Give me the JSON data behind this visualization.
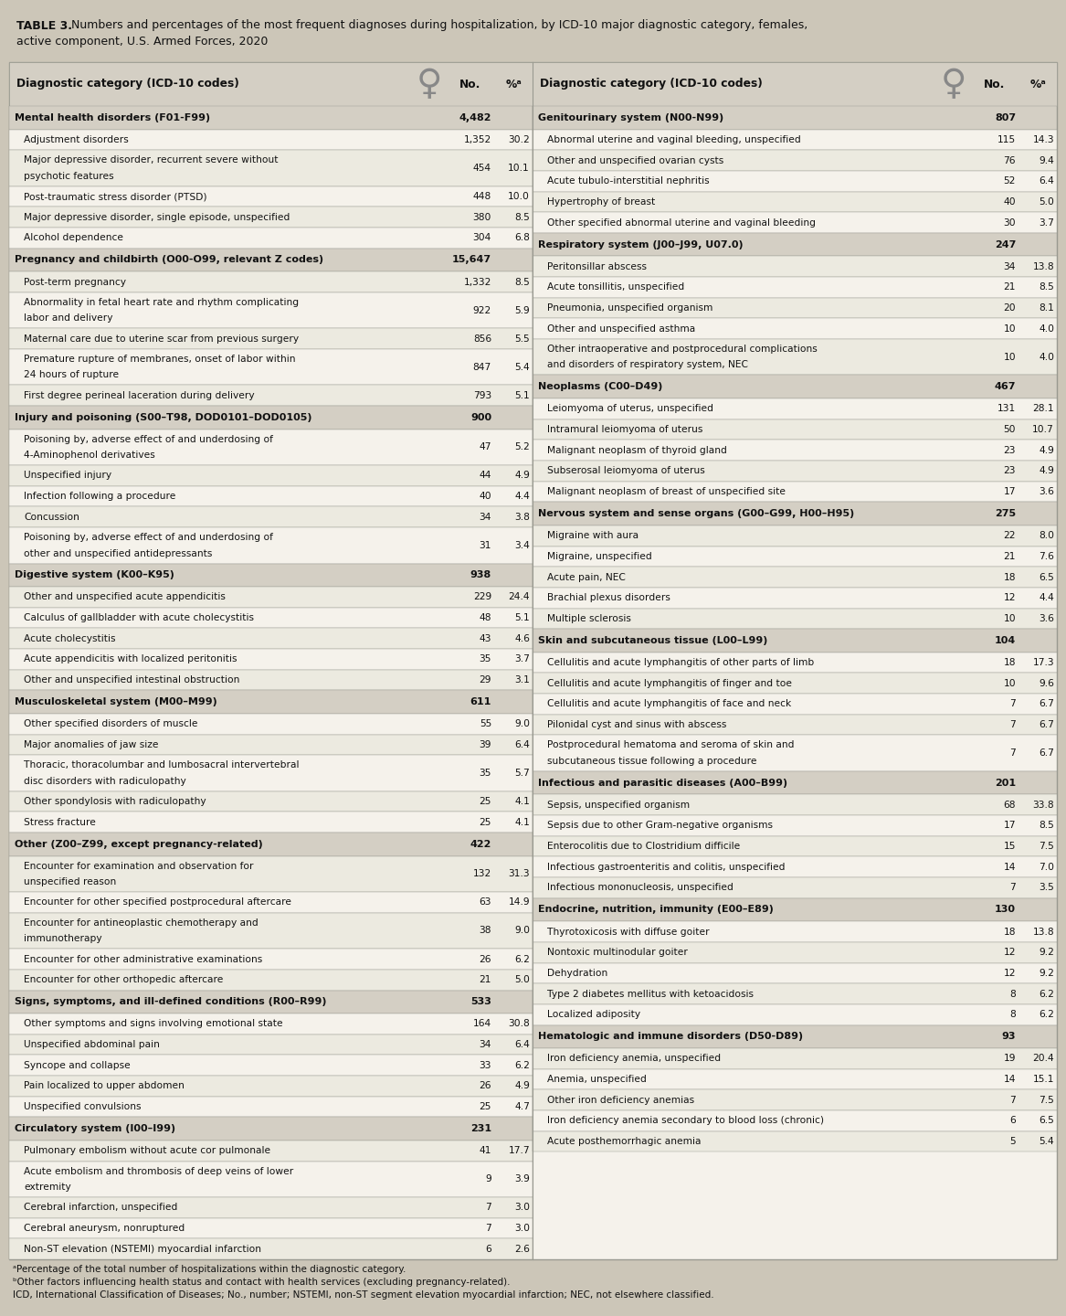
{
  "bg_color": "#ccc6b8",
  "table_bg": "#f5f2eb",
  "header_bg": "#d4cfc4",
  "cat_bg": "#d4cfc4",
  "row1_bg": "#f5f2eb",
  "row2_bg": "#eceae0",
  "border_color": "#999990",
  "text_color": "#111111",
  "title_bold": "TABLE 3.",
  "title_rest": " Numbers and percentages of the most frequent diagnoses during hospitalization, by ICD-10 major diagnostic category, females,",
  "title_line2": "active component, U.S. Armed Forces, 2020",
  "footnote1": "ᵃPercentage of the total number of hospitalizations within the diagnostic category.",
  "footnote2": "ᵇOther factors influencing health status and contact with health services (excluding pregnancy-related).",
  "footnote3": "ICD, International Classification of Diseases; No., number; NSTEMI, non-ST segment elevation myocardial infarction; NEC, not elsewhere classified.",
  "left_data": [
    {
      "type": "category",
      "text": "Mental health disorders (F01-F99)",
      "no": "4,482",
      "pct": ""
    },
    {
      "type": "row",
      "text": "Adjustment disorders",
      "no": "1,352",
      "pct": "30.2"
    },
    {
      "type": "row",
      "text": "Major depressive disorder, recurrent severe without\npsychotic features",
      "no": "454",
      "pct": "10.1"
    },
    {
      "type": "row",
      "text": "Post-traumatic stress disorder (PTSD)",
      "no": "448",
      "pct": "10.0"
    },
    {
      "type": "row",
      "text": "Major depressive disorder, single episode, unspecified",
      "no": "380",
      "pct": "8.5"
    },
    {
      "type": "row",
      "text": "Alcohol dependence",
      "no": "304",
      "pct": "6.8"
    },
    {
      "type": "category",
      "text": "Pregnancy and childbirth (O00-O99, relevant Z codes)",
      "no": "15,647",
      "pct": ""
    },
    {
      "type": "row",
      "text": "Post-term pregnancy",
      "no": "1,332",
      "pct": "8.5"
    },
    {
      "type": "row",
      "text": "Abnormality in fetal heart rate and rhythm complicating\nlabor and delivery",
      "no": "922",
      "pct": "5.9"
    },
    {
      "type": "row",
      "text": "Maternal care due to uterine scar from previous surgery",
      "no": "856",
      "pct": "5.5"
    },
    {
      "type": "row",
      "text": "Premature rupture of membranes, onset of labor within\n24 hours of rupture",
      "no": "847",
      "pct": "5.4"
    },
    {
      "type": "row",
      "text": "First degree perineal laceration during delivery",
      "no": "793",
      "pct": "5.1"
    },
    {
      "type": "category",
      "text": "Injury and poisoning (S00–T98, DOD0101–DOD0105)",
      "no": "900",
      "pct": ""
    },
    {
      "type": "row",
      "text": "Poisoning by, adverse effect of and underdosing of\n4-Aminophenol derivatives",
      "no": "47",
      "pct": "5.2"
    },
    {
      "type": "row",
      "text": "Unspecified injury",
      "no": "44",
      "pct": "4.9"
    },
    {
      "type": "row",
      "text": "Infection following a procedure",
      "no": "40",
      "pct": "4.4"
    },
    {
      "type": "row",
      "text": "Concussion",
      "no": "34",
      "pct": "3.8"
    },
    {
      "type": "row",
      "text": "Poisoning by, adverse effect of and underdosing of\nother and unspecified antidepressants",
      "no": "31",
      "pct": "3.4"
    },
    {
      "type": "category",
      "text": "Digestive system (K00–K95)",
      "no": "938",
      "pct": ""
    },
    {
      "type": "row",
      "text": "Other and unspecified acute appendicitis",
      "no": "229",
      "pct": "24.4"
    },
    {
      "type": "row",
      "text": "Calculus of gallbladder with acute cholecystitis",
      "no": "48",
      "pct": "5.1"
    },
    {
      "type": "row",
      "text": "Acute cholecystitis",
      "no": "43",
      "pct": "4.6"
    },
    {
      "type": "row",
      "text": "Acute appendicitis with localized peritonitis",
      "no": "35",
      "pct": "3.7"
    },
    {
      "type": "row",
      "text": "Other and unspecified intestinal obstruction",
      "no": "29",
      "pct": "3.1"
    },
    {
      "type": "category",
      "text": "Musculoskeletal system (M00–M99)",
      "no": "611",
      "pct": ""
    },
    {
      "type": "row",
      "text": "Other specified disorders of muscle",
      "no": "55",
      "pct": "9.0"
    },
    {
      "type": "row",
      "text": "Major anomalies of jaw size",
      "no": "39",
      "pct": "6.4"
    },
    {
      "type": "row",
      "text": "Thoracic, thoracolumbar and lumbosacral intervertebral\ndisc disorders with radiculopathy",
      "no": "35",
      "pct": "5.7"
    },
    {
      "type": "row",
      "text": "Other spondylosis with radiculopathy",
      "no": "25",
      "pct": "4.1"
    },
    {
      "type": "row",
      "text": "Stress fracture",
      "no": "25",
      "pct": "4.1"
    },
    {
      "type": "category",
      "text": "Other (Z00–Z99, except pregnancy-related)",
      "no": "422",
      "pct": ""
    },
    {
      "type": "row",
      "text": "Encounter for examination and observation for\nunspecified reason",
      "no": "132",
      "pct": "31.3"
    },
    {
      "type": "row",
      "text": "Encounter for other specified postprocedural aftercare",
      "no": "63",
      "pct": "14.9"
    },
    {
      "type": "row",
      "text": "Encounter for antineoplastic chemotherapy and\nimmunotherapy",
      "no": "38",
      "pct": "9.0"
    },
    {
      "type": "row",
      "text": "Encounter for other administrative examinations",
      "no": "26",
      "pct": "6.2"
    },
    {
      "type": "row",
      "text": "Encounter for other orthopedic aftercare",
      "no": "21",
      "pct": "5.0"
    },
    {
      "type": "category",
      "text": "Signs, symptoms, and ill-defined conditions (R00–R99)",
      "no": "533",
      "pct": ""
    },
    {
      "type": "row",
      "text": "Other symptoms and signs involving emotional state",
      "no": "164",
      "pct": "30.8"
    },
    {
      "type": "row",
      "text": "Unspecified abdominal pain",
      "no": "34",
      "pct": "6.4"
    },
    {
      "type": "row",
      "text": "Syncope and collapse",
      "no": "33",
      "pct": "6.2"
    },
    {
      "type": "row",
      "text": "Pain localized to upper abdomen",
      "no": "26",
      "pct": "4.9"
    },
    {
      "type": "row",
      "text": "Unspecified convulsions",
      "no": "25",
      "pct": "4.7"
    },
    {
      "type": "category",
      "text": "Circulatory system (I00–I99)",
      "no": "231",
      "pct": ""
    },
    {
      "type": "row",
      "text": "Pulmonary embolism without acute cor pulmonale",
      "no": "41",
      "pct": "17.7"
    },
    {
      "type": "row",
      "text": "Acute embolism and thrombosis of deep veins of lower\nextremity",
      "no": "9",
      "pct": "3.9"
    },
    {
      "type": "row",
      "text": "Cerebral infarction, unspecified",
      "no": "7",
      "pct": "3.0"
    },
    {
      "type": "row",
      "text": "Cerebral aneurysm, nonruptured",
      "no": "7",
      "pct": "3.0"
    },
    {
      "type": "row",
      "text": "Non-ST elevation (NSTEMI) myocardial infarction",
      "no": "6",
      "pct": "2.6"
    }
  ],
  "right_data": [
    {
      "type": "category",
      "text": "Genitourinary system (N00-N99)",
      "no": "807",
      "pct": ""
    },
    {
      "type": "row",
      "text": "Abnormal uterine and vaginal bleeding, unspecified",
      "no": "115",
      "pct": "14.3"
    },
    {
      "type": "row",
      "text": "Other and unspecified ovarian cysts",
      "no": "76",
      "pct": "9.4"
    },
    {
      "type": "row",
      "text": "Acute tubulo-interstitial nephritis",
      "no": "52",
      "pct": "6.4"
    },
    {
      "type": "row",
      "text": "Hypertrophy of breast",
      "no": "40",
      "pct": "5.0"
    },
    {
      "type": "row",
      "text": "Other specified abnormal uterine and vaginal bleeding",
      "no": "30",
      "pct": "3.7"
    },
    {
      "type": "category",
      "text": "Respiratory system (J00–J99, U07.0)",
      "no": "247",
      "pct": ""
    },
    {
      "type": "row",
      "text": "Peritonsillar abscess",
      "no": "34",
      "pct": "13.8"
    },
    {
      "type": "row",
      "text": "Acute tonsillitis, unspecified",
      "no": "21",
      "pct": "8.5"
    },
    {
      "type": "row",
      "text": "Pneumonia, unspecified organism",
      "no": "20",
      "pct": "8.1"
    },
    {
      "type": "row",
      "text": "Other and unspecified asthma",
      "no": "10",
      "pct": "4.0"
    },
    {
      "type": "row",
      "text": "Other intraoperative and postprocedural complications\nand disorders of respiratory system, NEC",
      "no": "10",
      "pct": "4.0"
    },
    {
      "type": "category",
      "text": "Neoplasms (C00–D49)",
      "no": "467",
      "pct": ""
    },
    {
      "type": "row",
      "text": "Leiomyoma of uterus, unspecified",
      "no": "131",
      "pct": "28.1"
    },
    {
      "type": "row",
      "text": "Intramural leiomyoma of uterus",
      "no": "50",
      "pct": "10.7"
    },
    {
      "type": "row",
      "text": "Malignant neoplasm of thyroid gland",
      "no": "23",
      "pct": "4.9"
    },
    {
      "type": "row",
      "text": "Subserosal leiomyoma of uterus",
      "no": "23",
      "pct": "4.9"
    },
    {
      "type": "row",
      "text": "Malignant neoplasm of breast of unspecified site",
      "no": "17",
      "pct": "3.6"
    },
    {
      "type": "category",
      "text": "Nervous system and sense organs (G00–G99, H00–H95)",
      "no": "275",
      "pct": ""
    },
    {
      "type": "row",
      "text": "Migraine with aura",
      "no": "22",
      "pct": "8.0"
    },
    {
      "type": "row",
      "text": "Migraine, unspecified",
      "no": "21",
      "pct": "7.6"
    },
    {
      "type": "row",
      "text": "Acute pain, NEC",
      "no": "18",
      "pct": "6.5"
    },
    {
      "type": "row",
      "text": "Brachial plexus disorders",
      "no": "12",
      "pct": "4.4"
    },
    {
      "type": "row",
      "text": "Multiple sclerosis",
      "no": "10",
      "pct": "3.6"
    },
    {
      "type": "category",
      "text": "Skin and subcutaneous tissue (L00–L99)",
      "no": "104",
      "pct": ""
    },
    {
      "type": "row",
      "text": "Cellulitis and acute lymphangitis of other parts of limb",
      "no": "18",
      "pct": "17.3"
    },
    {
      "type": "row",
      "text": "Cellulitis and acute lymphangitis of finger and toe",
      "no": "10",
      "pct": "9.6"
    },
    {
      "type": "row",
      "text": "Cellulitis and acute lymphangitis of face and neck",
      "no": "7",
      "pct": "6.7"
    },
    {
      "type": "row",
      "text": "Pilonidal cyst and sinus with abscess",
      "no": "7",
      "pct": "6.7"
    },
    {
      "type": "row",
      "text": "Postprocedural hematoma and seroma of skin and\nsubcutaneous tissue following a procedure",
      "no": "7",
      "pct": "6.7"
    },
    {
      "type": "category",
      "text": "Infectious and parasitic diseases (A00–B99)",
      "no": "201",
      "pct": ""
    },
    {
      "type": "row",
      "text": "Sepsis, unspecified organism",
      "no": "68",
      "pct": "33.8"
    },
    {
      "type": "row",
      "text": "Sepsis due to other Gram-negative organisms",
      "no": "17",
      "pct": "8.5"
    },
    {
      "type": "row",
      "text": "Enterocolitis due to Clostridium difficile",
      "no": "15",
      "pct": "7.5"
    },
    {
      "type": "row",
      "text": "Infectious gastroenteritis and colitis, unspecified",
      "no": "14",
      "pct": "7.0"
    },
    {
      "type": "row",
      "text": "Infectious mononucleosis, unspecified",
      "no": "7",
      "pct": "3.5"
    },
    {
      "type": "category",
      "text": "Endocrine, nutrition, immunity (E00–E89)",
      "no": "130",
      "pct": ""
    },
    {
      "type": "row",
      "text": "Thyrotoxicosis with diffuse goiter",
      "no": "18",
      "pct": "13.8"
    },
    {
      "type": "row",
      "text": "Nontoxic multinodular goiter",
      "no": "12",
      "pct": "9.2"
    },
    {
      "type": "row",
      "text": "Dehydration",
      "no": "12",
      "pct": "9.2"
    },
    {
      "type": "row",
      "text": "Type 2 diabetes mellitus with ketoacidosis",
      "no": "8",
      "pct": "6.2"
    },
    {
      "type": "row",
      "text": "Localized adiposity",
      "no": "8",
      "pct": "6.2"
    },
    {
      "type": "category",
      "text": "Hematologic and immune disorders (D50-D89)",
      "no": "93",
      "pct": ""
    },
    {
      "type": "row",
      "text": "Iron deficiency anemia, unspecified",
      "no": "19",
      "pct": "20.4"
    },
    {
      "type": "row",
      "text": "Anemia, unspecified",
      "no": "14",
      "pct": "15.1"
    },
    {
      "type": "row",
      "text": "Other iron deficiency anemias",
      "no": "7",
      "pct": "7.5"
    },
    {
      "type": "row",
      "text": "Iron deficiency anemia secondary to blood loss (chronic)",
      "no": "6",
      "pct": "6.5"
    },
    {
      "type": "row",
      "text": "Acute posthemorrhagic anemia",
      "no": "5",
      "pct": "5.4"
    }
  ]
}
